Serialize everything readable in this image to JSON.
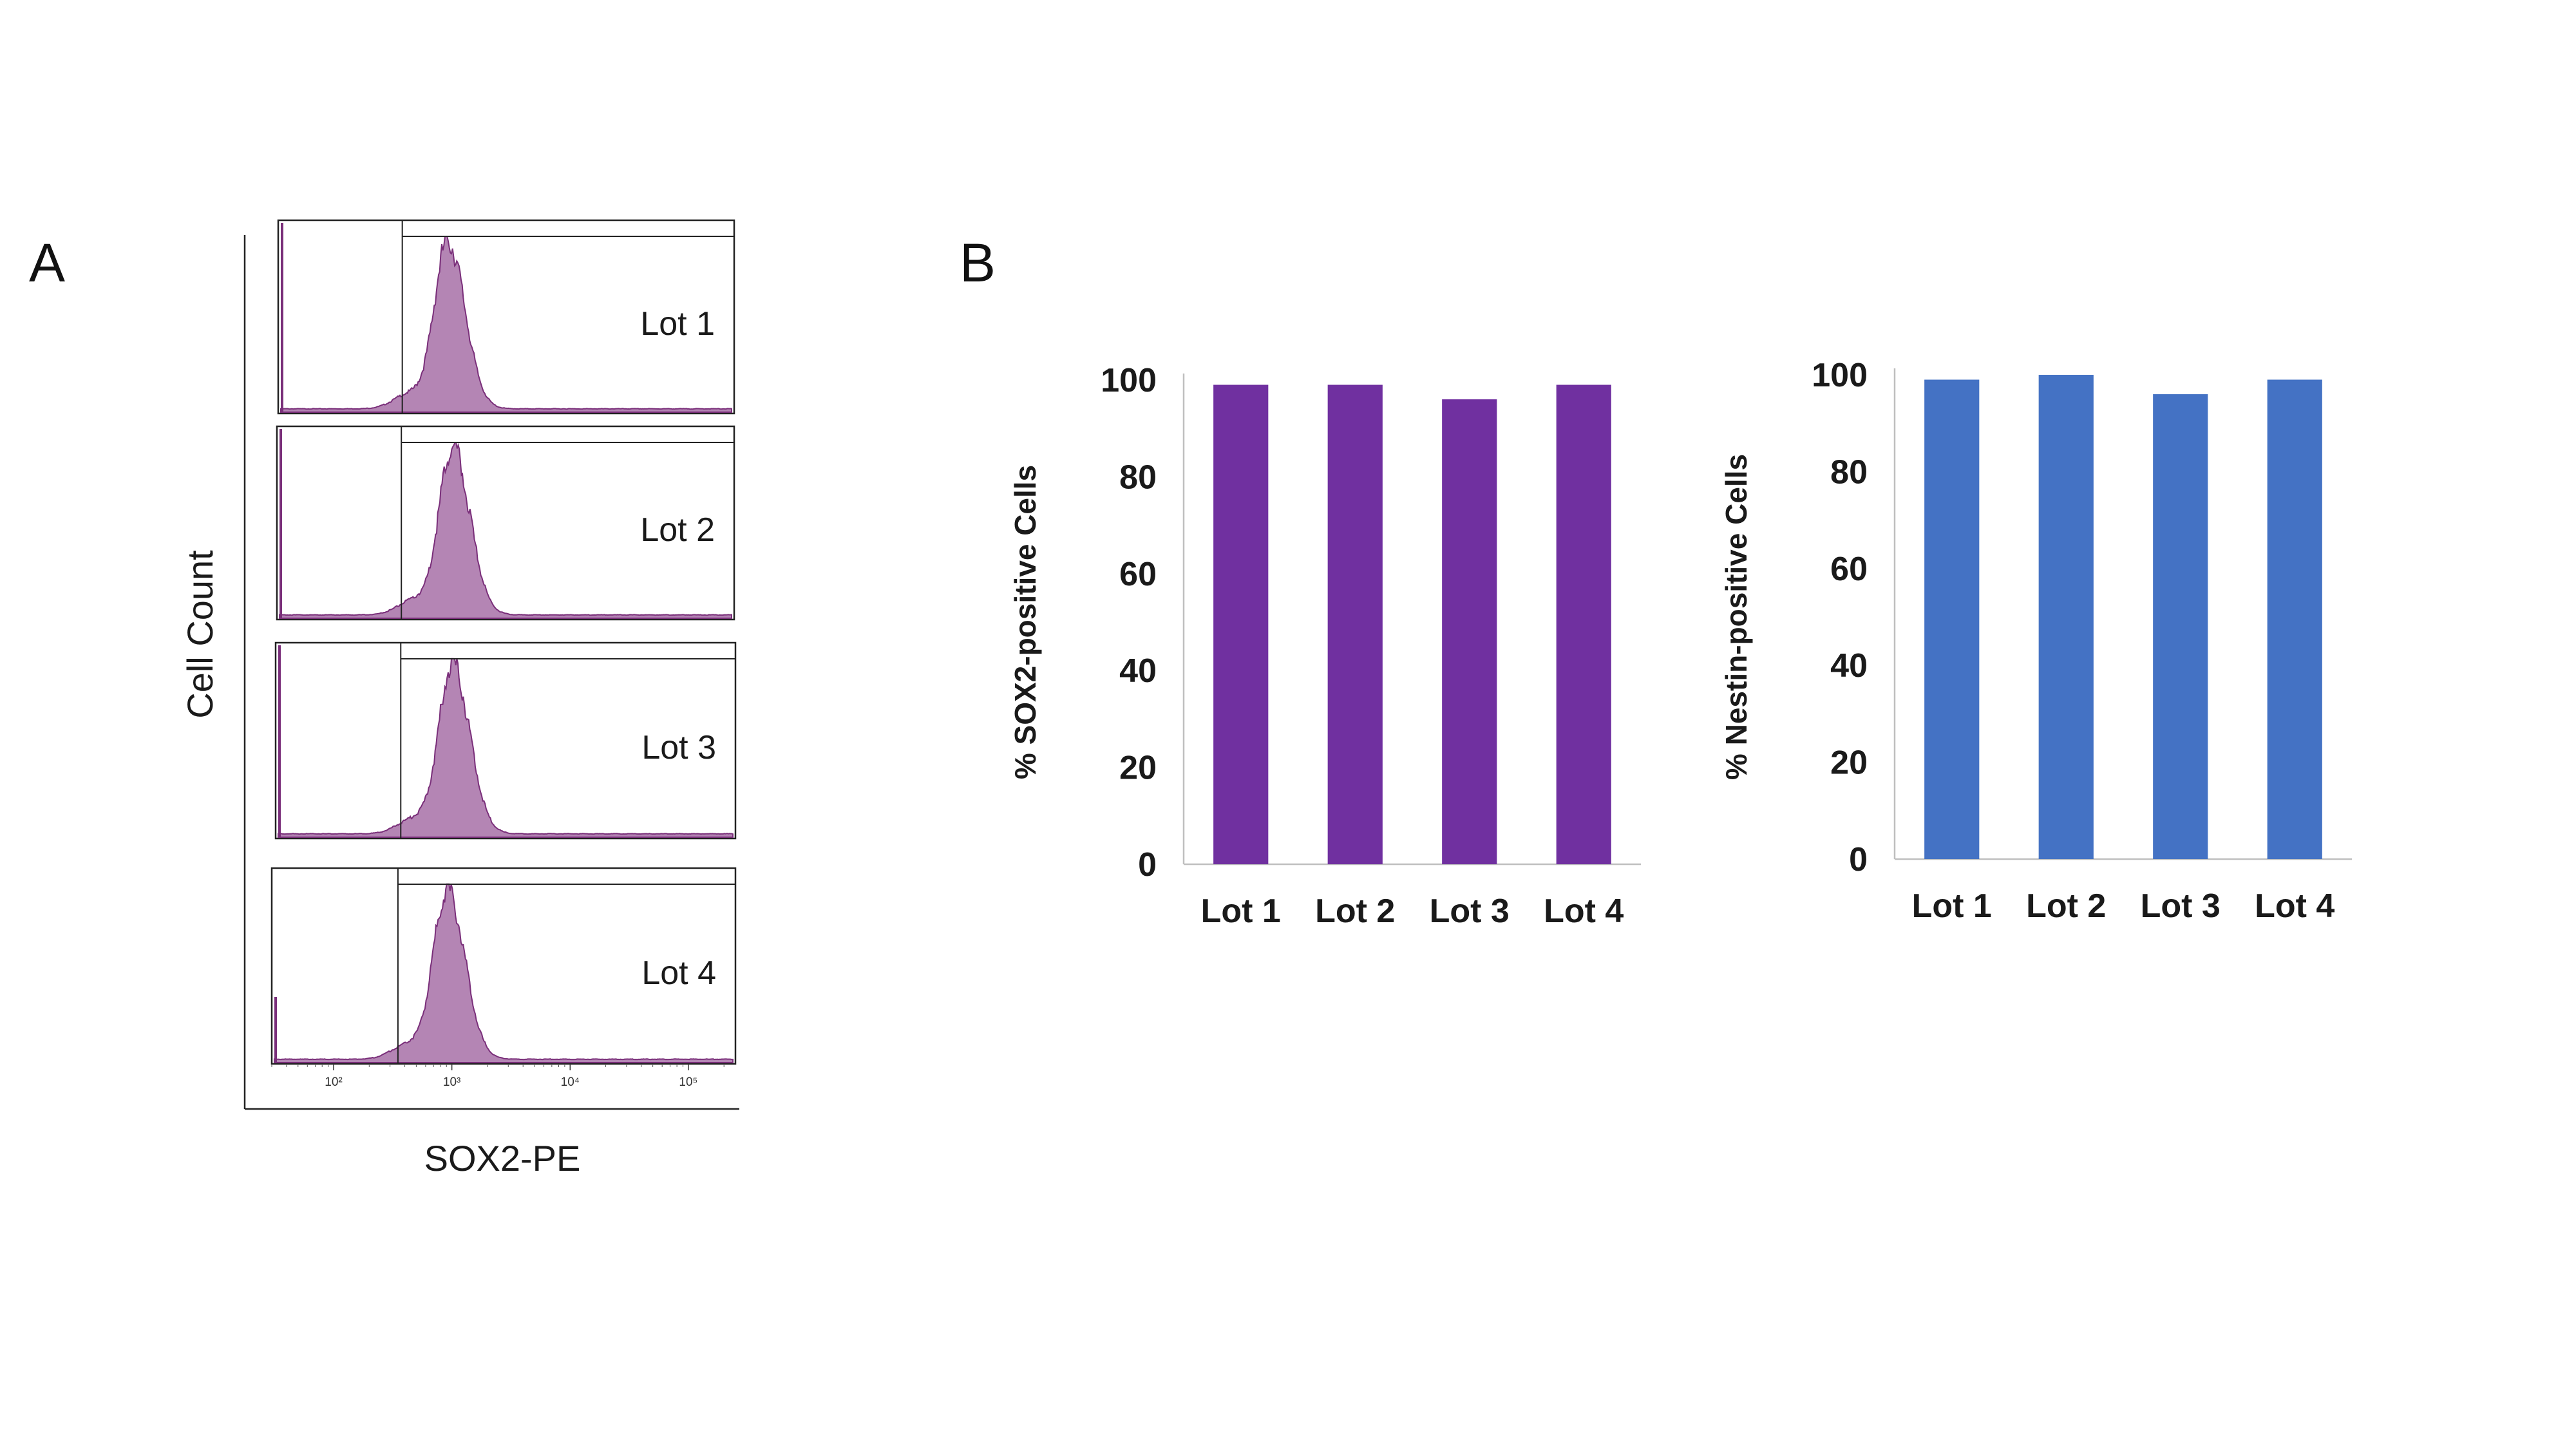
{
  "panel_labels": {
    "a": "A",
    "b": "B"
  },
  "chart_data": [
    {
      "type": "area",
      "panel": "A",
      "xlabel": "SOX2-PE",
      "ylabel": "Cell Count",
      "x_scale": "log",
      "x_tick_labels": [
        "10²",
        "10³",
        "10⁴",
        "10⁵"
      ],
      "x_tick_values": [
        100,
        1000,
        10000,
        100000
      ],
      "xlim": [
        30,
        250000
      ],
      "gate_start": 350,
      "series": [
        {
          "name": "Lot 1",
          "peak": 850,
          "spread": 0.11
        },
        {
          "name": "Lot 2",
          "peak": 950,
          "spread": 0.11
        },
        {
          "name": "Lot 3",
          "peak": 950,
          "spread": 0.11
        },
        {
          "name": "Lot 4",
          "peak": 900,
          "spread": 0.11
        }
      ],
      "color": "#9b5c9b"
    },
    {
      "type": "bar",
      "panel": "B",
      "categories": [
        "Lot 1",
        "Lot 2",
        "Lot 3",
        "Lot 4"
      ],
      "values": [
        99,
        99,
        96,
        99
      ],
      "ylabel": "% SOX2-positive Cells",
      "ylim": [
        0,
        100
      ],
      "yticks": [
        0,
        20,
        40,
        60,
        80,
        100
      ],
      "color": "#7030a0"
    },
    {
      "type": "bar",
      "panel": "B",
      "categories": [
        "Lot 1",
        "Lot 2",
        "Lot 3",
        "Lot 4"
      ],
      "values": [
        99,
        100,
        96,
        99
      ],
      "ylabel": "% Nestin-positive Cells",
      "ylim": [
        0,
        100
      ],
      "yticks": [
        0,
        20,
        40,
        60,
        80,
        100
      ],
      "color": "#4472c4"
    }
  ]
}
